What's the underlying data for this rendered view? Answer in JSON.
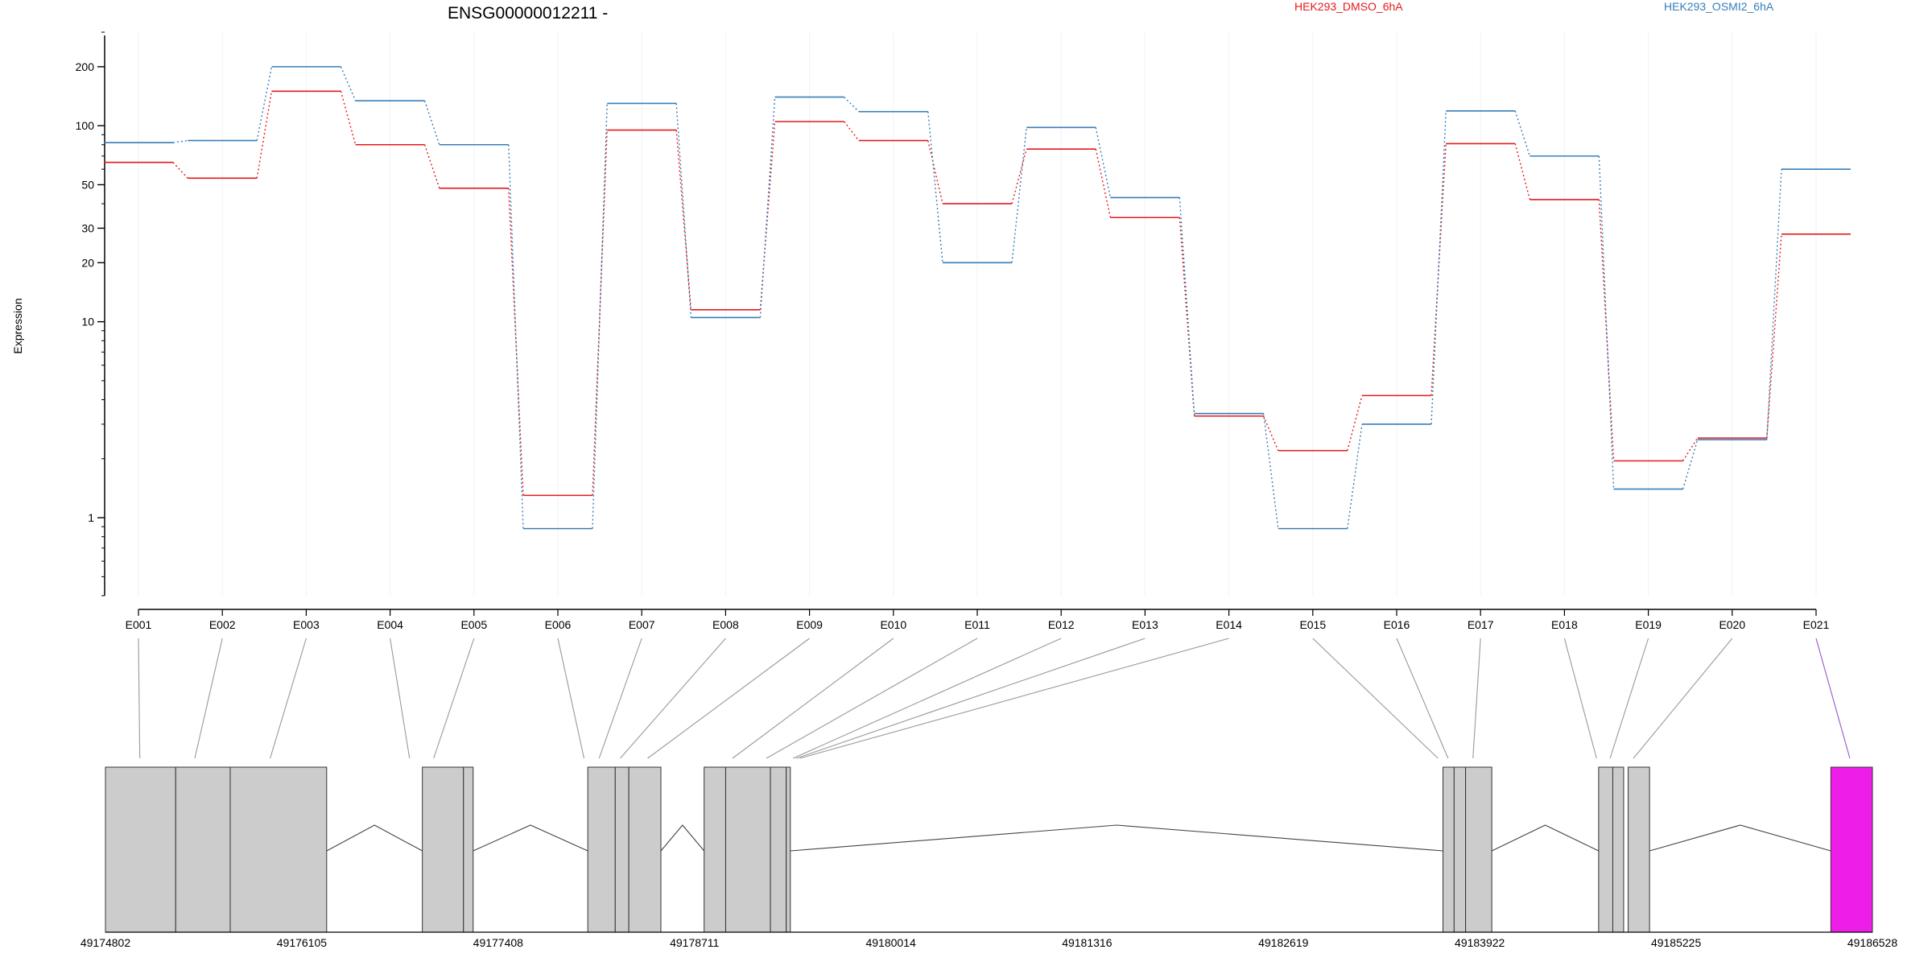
{
  "chart_data": {
    "type": "line",
    "title": "ENSG00000012211 -",
    "ylabel": "Expression",
    "yscale": "log",
    "ylim": [
      0.4,
      300
    ],
    "yticks": [
      1,
      10,
      20,
      30,
      50,
      100,
      200
    ],
    "grid": false,
    "legend_position": "top",
    "categories": [
      "E001",
      "E002",
      "E003",
      "E004",
      "E005",
      "E006",
      "E007",
      "E008",
      "E009",
      "E010",
      "E011",
      "E012",
      "E013",
      "E014",
      "E015",
      "E016",
      "E017",
      "E018",
      "E019",
      "E020",
      "E021"
    ],
    "series": [
      {
        "name": "HEK293_DMSO_6hA",
        "color": "#e41a1c",
        "values": [
          65,
          54,
          150,
          80,
          48,
          1.3,
          95,
          11.5,
          105,
          84,
          40,
          76,
          34,
          3.3,
          2.2,
          4.2,
          81,
          42,
          1.95,
          2.55,
          28
        ]
      },
      {
        "name": "HEK293_OSMI2_6hA",
        "color": "#377eb8",
        "values": [
          82,
          84,
          200,
          134,
          80,
          0.88,
          130,
          10.5,
          140,
          118,
          20,
          98,
          43,
          3.4,
          0.88,
          3.0,
          119,
          70,
          1.4,
          2.5,
          60
        ]
      }
    ],
    "genomic_axis": {
      "tick_labels": [
        "49174802",
        "49176105",
        "49177408",
        "49178711",
        "49180014",
        "49181316",
        "49182619",
        "49183922",
        "49185225",
        "49186528"
      ],
      "tick_values": [
        49174802,
        49176105,
        49177408,
        49178711,
        49180014,
        49181316,
        49182619,
        49183922,
        49185225,
        49186528
      ],
      "range": [
        49174802,
        49186528
      ]
    },
    "gene_model": {
      "exon_color": "#cccccc",
      "highlight_color": "#ee1ee8",
      "connector_color": "#999999",
      "highlight_connector_color": "#9a55c9",
      "blocks": [
        {
          "start": 49174802,
          "end": 49175268
        },
        {
          "start": 49175268,
          "end": 49175630
        },
        {
          "start": 49175630,
          "end": 49176270
        },
        {
          "start": 49176905,
          "end": 49177178
        },
        {
          "start": 49177178,
          "end": 49177242
        },
        {
          "start": 49178003,
          "end": 49178185
        },
        {
          "start": 49178185,
          "end": 49178275
        },
        {
          "start": 49178275,
          "end": 49178488
        },
        {
          "start": 49178775,
          "end": 49178918
        },
        {
          "start": 49178918,
          "end": 49179215
        },
        {
          "start": 49179215,
          "end": 49179320
        },
        {
          "start": 49179320,
          "end": 49179347
        },
        {
          "start": 49183678,
          "end": 49183752
        },
        {
          "start": 49183752,
          "end": 49183828
        },
        {
          "start": 49183828,
          "end": 49184002
        },
        {
          "start": 49184711,
          "end": 49184805
        },
        {
          "start": 49184805,
          "end": 49184877
        },
        {
          "start": 49184907,
          "end": 49185049
        },
        {
          "start": 49186252,
          "end": 49186528,
          "highlight": true
        }
      ],
      "introns": [
        {
          "start": 49176270,
          "end": 49176905
        },
        {
          "start": 49177242,
          "end": 49178003
        },
        {
          "start": 49178488,
          "end": 49178775
        },
        {
          "start": 49179347,
          "end": 49183678
        },
        {
          "start": 49184002,
          "end": 49184711
        },
        {
          "start": 49185049,
          "end": 49186252
        }
      ],
      "feature_anchors": [
        49175030,
        49175395,
        49175895,
        49176820,
        49176980,
        49177978,
        49178078,
        49178218,
        49178400,
        49178963,
        49179188,
        49179365,
        49179387,
        49179410,
        49183645,
        49183712,
        49183877,
        49184697,
        49184787,
        49184942,
        49186378
      ]
    }
  }
}
